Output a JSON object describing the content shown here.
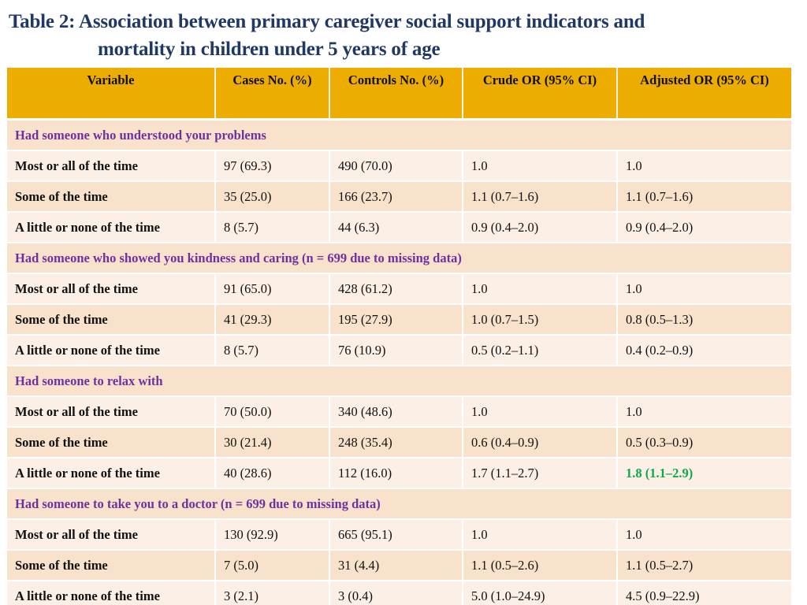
{
  "title": {
    "line1": "Table 2: Association between primary caregiver social support indicators and",
    "line2": "mortality in children under 5 years of age"
  },
  "colors": {
    "title": "#1f3864",
    "header_bg": "#ecac00",
    "section_text": "#7030a0",
    "row_light": "#fbefe6",
    "row_dark": "#f8e2cc",
    "highlight": "#0fa84a"
  },
  "table": {
    "headers": [
      "Variable",
      "Cases No. (%)",
      "Controls No. (%)",
      "Crude OR (95% CI)",
      "Adjusted OR (95% CI)"
    ],
    "sections": [
      {
        "title": "Had someone who understood your problems",
        "rows": [
          {
            "label": "Most or all of the time",
            "cases": "97 (69.3)",
            "controls": "490 (70.0)",
            "crude": "1.0",
            "adjusted": "1.0"
          },
          {
            "label": "Some of the time",
            "cases": "35 (25.0)",
            "controls": "166 (23.7)",
            "crude": "1.1 (0.7–1.6)",
            "adjusted": "1.1 (0.7–1.6)"
          },
          {
            "label": "A little or none of the time",
            "cases": "8 (5.7)",
            "controls": "44 (6.3)",
            "crude": "0.9 (0.4–2.0)",
            "adjusted": "0.9 (0.4–2.0)"
          }
        ]
      },
      {
        "title": "Had someone who showed you kindness and caring (n = 699 due to missing data)",
        "rows": [
          {
            "label": "Most or all of the time",
            "cases": "91 (65.0)",
            "controls": "428 (61.2)",
            "crude": "1.0",
            "adjusted": "1.0"
          },
          {
            "label": "Some of the time",
            "cases": "41 (29.3)",
            "controls": "195 (27.9)",
            "crude": "1.0 (0.7–1.5)",
            "adjusted": "0.8 (0.5–1.3)"
          },
          {
            "label": "A little or none of the time",
            "cases": "8 (5.7)",
            "controls": "76 (10.9)",
            "crude": "0.5 (0.2–1.1)",
            "adjusted": "0.4 (0.2–0.9)"
          }
        ]
      },
      {
        "title": "Had someone to relax with",
        "rows": [
          {
            "label": "Most or all of the time",
            "cases": "70 (50.0)",
            "controls": "340 (48.6)",
            "crude": "1.0",
            "adjusted": "1.0"
          },
          {
            "label": "Some of the time",
            "cases": "30 (21.4)",
            "controls": "248 (35.4)",
            "crude": "0.6 (0.4–0.9)",
            "adjusted": "0.5 (0.3–0.9)"
          },
          {
            "label": "A little or none of the time",
            "cases": "40 (28.6)",
            "controls": "112 (16.0)",
            "crude": "1.7 (1.1–2.7)",
            "adjusted": "1.8 (1.1–2.9)",
            "adjusted_highlight": true
          }
        ]
      },
      {
        "title": "Had someone to take you to a doctor (n = 699 due to missing data)",
        "rows": [
          {
            "label": "Most or all of the time",
            "cases": "130 (92.9)",
            "controls": "665 (95.1)",
            "crude": "1.0",
            "adjusted": "1.0"
          },
          {
            "label": "Some of the time",
            "cases": "7 (5.0)",
            "controls": "31 (4.4)",
            "crude": "1.1 (0.5–2.6)",
            "adjusted": "1.1 (0.5–2.7)"
          },
          {
            "label": "A little or none of the time",
            "cases": "3 (2.1)",
            "controls": "3 (0.4)",
            "crude": "5.0 (1.0–24.9)",
            "adjusted": "4.5 (0.9–22.9)"
          }
        ]
      }
    ]
  }
}
